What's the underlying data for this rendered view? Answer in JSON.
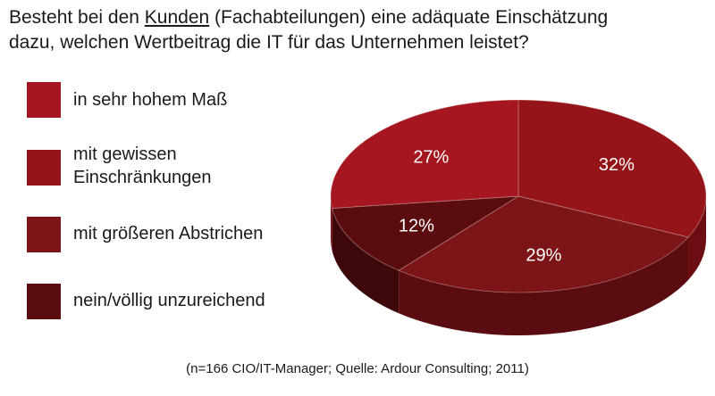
{
  "title": {
    "before": "Besteht bei den ",
    "underlined": "Kunden",
    "after": " (Fachabteilungen) eine adäquate Einschätzung",
    "line2": "dazu, welchen Wertbeitrag die IT für das Unternehmen leistet?"
  },
  "footnote": "(n=166 CIO/IT-Manager; Quelle: Ardour Consulting; 2011)",
  "chart_data": {
    "type": "pie",
    "title": "Besteht bei den Kunden (Fachabteilungen) eine adäquate Einschätzung dazu, welchen Wertbeitrag die IT für das Unternehmen leistet?",
    "legend_placement": "left",
    "slices": [
      {
        "label_lines": [
          "in sehr hohem Maß"
        ],
        "value": 27,
        "value_label": "27%",
        "color": "#a51620",
        "side_color": "#7a0f17"
      },
      {
        "label_lines": [
          "mit gewissen",
          "Einschränkungen"
        ],
        "value": 32,
        "value_label": "32%",
        "color": "#951419",
        "side_color": "#6c0d12"
      },
      {
        "label_lines": [
          "mit größeren Abstrichen"
        ],
        "value": 29,
        "value_label": "29%",
        "color": "#7c1418",
        "side_color": "#5a0c10"
      },
      {
        "label_lines": [
          "nein/völlig unzureichend"
        ],
        "value": 12,
        "value_label": "12%",
        "color": "#5a0c0f",
        "side_color": "#3e080a"
      }
    ]
  }
}
